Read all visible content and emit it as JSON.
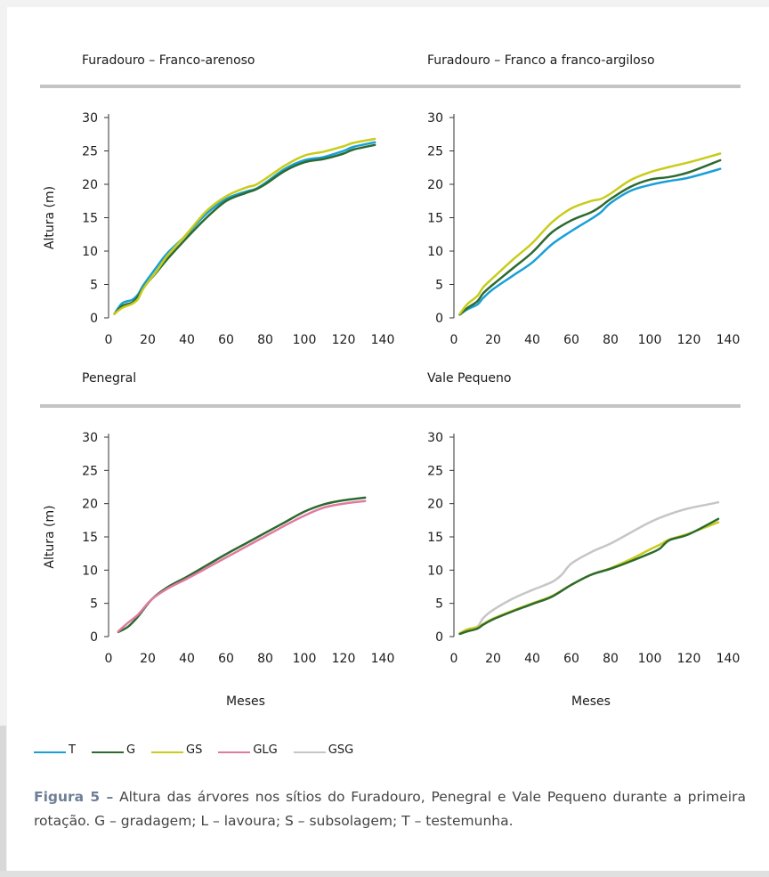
{
  "caption": {
    "label": "Figura 5 –",
    "text": "Altura das árvores nos sítios do Furadouro, Penegral e Vale Pequeno durante a primeira rotação. G – gradagem; L – lavoura; S – subsolagem; T – testemunha."
  },
  "legend": [
    {
      "name": "T",
      "color": "#1a9fd6"
    },
    {
      "name": "G",
      "color": "#2d6a2f"
    },
    {
      "name": "GS",
      "color": "#c8cc1a"
    },
    {
      "name": "GLG",
      "color": "#e07aa0"
    },
    {
      "name": "GSG",
      "color": "#c6c6c6"
    }
  ],
  "chart_data": [
    {
      "type": "line",
      "title": "Furadouro – Franco-arenoso",
      "xlabel": "",
      "ylabel": "Altura (m)",
      "xlim": [
        0,
        140
      ],
      "ylim": [
        0,
        30
      ],
      "xticks": [
        "0",
        "20",
        "40",
        "60",
        "80",
        "100",
        "120",
        "140"
      ],
      "yticks": [
        "0",
        "5",
        "10",
        "15",
        "20",
        "25",
        "30"
      ],
      "series": [
        {
          "name": "T",
          "color": "#1a9fd6",
          "points": [
            [
              3,
              0.6
            ],
            [
              7,
              2.2
            ],
            [
              12,
              2.7
            ],
            [
              15,
              3.5
            ],
            [
              18,
              5.0
            ],
            [
              25,
              7.8
            ],
            [
              30,
              9.7
            ],
            [
              40,
              12.5
            ],
            [
              50,
              15.6
            ],
            [
              60,
              17.8
            ],
            [
              70,
              18.9
            ],
            [
              75,
              19.3
            ],
            [
              80,
              20.2
            ],
            [
              90,
              22.3
            ],
            [
              100,
              23.6
            ],
            [
              110,
              24.1
            ],
            [
              120,
              25.0
            ],
            [
              125,
              25.6
            ],
            [
              136,
              26.3
            ]
          ]
        },
        {
          "name": "G",
          "color": "#2d6a2f",
          "points": [
            [
              3,
              0.6
            ],
            [
              7,
              1.8
            ],
            [
              12,
              2.3
            ],
            [
              15,
              3.2
            ],
            [
              18,
              4.6
            ],
            [
              25,
              7.0
            ],
            [
              30,
              8.8
            ],
            [
              40,
              12.0
            ],
            [
              50,
              15.0
            ],
            [
              60,
              17.5
            ],
            [
              70,
              18.7
            ],
            [
              75,
              19.2
            ],
            [
              80,
              20.0
            ],
            [
              90,
              22.0
            ],
            [
              100,
              23.3
            ],
            [
              110,
              23.8
            ],
            [
              120,
              24.6
            ],
            [
              125,
              25.2
            ],
            [
              136,
              25.9
            ]
          ]
        },
        {
          "name": "GS",
          "color": "#c8cc1a",
          "points": [
            [
              3,
              0.6
            ],
            [
              7,
              1.5
            ],
            [
              12,
              2.1
            ],
            [
              15,
              2.8
            ],
            [
              18,
              4.5
            ],
            [
              25,
              7.2
            ],
            [
              30,
              9.3
            ],
            [
              40,
              12.6
            ],
            [
              50,
              16.0
            ],
            [
              60,
              18.2
            ],
            [
              70,
              19.5
            ],
            [
              75,
              19.9
            ],
            [
              80,
              20.8
            ],
            [
              90,
              22.8
            ],
            [
              100,
              24.3
            ],
            [
              110,
              24.9
            ],
            [
              120,
              25.7
            ],
            [
              125,
              26.2
            ],
            [
              136,
              26.8
            ]
          ]
        }
      ]
    },
    {
      "type": "line",
      "title": "Furadouro – Franco a franco-argiloso",
      "xlabel": "",
      "ylabel": "",
      "xlim": [
        0,
        140
      ],
      "ylim": [
        0,
        30
      ],
      "xticks": [
        "0",
        "20",
        "40",
        "60",
        "80",
        "100",
        "120",
        "140"
      ],
      "yticks": [
        "0",
        "5",
        "10",
        "15",
        "20",
        "25",
        "30"
      ],
      "series": [
        {
          "name": "T",
          "color": "#1a9fd6",
          "points": [
            [
              3,
              0.5
            ],
            [
              7,
              1.3
            ],
            [
              12,
              2.0
            ],
            [
              15,
              3.0
            ],
            [
              20,
              4.3
            ],
            [
              30,
              6.3
            ],
            [
              40,
              8.3
            ],
            [
              50,
              11.0
            ],
            [
              60,
              13.0
            ],
            [
              70,
              14.8
            ],
            [
              75,
              15.8
            ],
            [
              80,
              17.2
            ],
            [
              90,
              19.0
            ],
            [
              100,
              19.9
            ],
            [
              110,
              20.5
            ],
            [
              120,
              21.0
            ],
            [
              136,
              22.3
            ]
          ]
        },
        {
          "name": "G",
          "color": "#2d6a2f",
          "points": [
            [
              3,
              0.5
            ],
            [
              7,
              1.5
            ],
            [
              12,
              2.5
            ],
            [
              15,
              3.7
            ],
            [
              20,
              5.0
            ],
            [
              30,
              7.4
            ],
            [
              40,
              9.8
            ],
            [
              50,
              12.8
            ],
            [
              60,
              14.6
            ],
            [
              70,
              15.8
            ],
            [
              75,
              16.7
            ],
            [
              80,
              17.8
            ],
            [
              90,
              19.6
            ],
            [
              100,
              20.7
            ],
            [
              110,
              21.1
            ],
            [
              120,
              21.8
            ],
            [
              136,
              23.6
            ]
          ]
        },
        {
          "name": "GS",
          "color": "#c8cc1a",
          "points": [
            [
              3,
              0.6
            ],
            [
              7,
              2.1
            ],
            [
              12,
              3.3
            ],
            [
              15,
              4.6
            ],
            [
              20,
              6.0
            ],
            [
              30,
              8.7
            ],
            [
              40,
              11.2
            ],
            [
              50,
              14.3
            ],
            [
              60,
              16.4
            ],
            [
              70,
              17.5
            ],
            [
              75,
              17.8
            ],
            [
              80,
              18.6
            ],
            [
              90,
              20.6
            ],
            [
              100,
              21.8
            ],
            [
              110,
              22.6
            ],
            [
              120,
              23.3
            ],
            [
              136,
              24.6
            ]
          ]
        }
      ]
    },
    {
      "type": "line",
      "title": "Penegral",
      "xlabel": "Meses",
      "ylabel": "Altura (m)",
      "xlim": [
        0,
        140
      ],
      "ylim": [
        0,
        30
      ],
      "xticks": [
        "0",
        "20",
        "40",
        "60",
        "80",
        "100",
        "120",
        "140"
      ],
      "yticks": [
        "0",
        "5",
        "10",
        "15",
        "20",
        "25",
        "30"
      ],
      "series": [
        {
          "name": "G",
          "color": "#2d6a2f",
          "points": [
            [
              5,
              0.7
            ],
            [
              10,
              1.5
            ],
            [
              15,
              3.0
            ],
            [
              22,
              5.6
            ],
            [
              30,
              7.4
            ],
            [
              40,
              9.0
            ],
            [
              50,
              10.7
            ],
            [
              60,
              12.4
            ],
            [
              70,
              14.0
            ],
            [
              80,
              15.6
            ],
            [
              90,
              17.2
            ],
            [
              100,
              18.8
            ],
            [
              110,
              19.9
            ],
            [
              120,
              20.5
            ],
            [
              131,
              20.9
            ]
          ]
        },
        {
          "name": "GLG",
          "color": "#e07aa0",
          "points": [
            [
              5,
              0.8
            ],
            [
              10,
              2.1
            ],
            [
              15,
              3.3
            ],
            [
              22,
              5.6
            ],
            [
              30,
              7.2
            ],
            [
              40,
              8.7
            ],
            [
              50,
              10.3
            ],
            [
              60,
              11.9
            ],
            [
              70,
              13.5
            ],
            [
              80,
              15.1
            ],
            [
              90,
              16.7
            ],
            [
              100,
              18.2
            ],
            [
              110,
              19.4
            ],
            [
              120,
              20.0
            ],
            [
              131,
              20.4
            ]
          ]
        }
      ]
    },
    {
      "type": "line",
      "title": "Vale Pequeno",
      "xlabel": "Meses",
      "ylabel": "",
      "xlim": [
        0,
        140
      ],
      "ylim": [
        0,
        30
      ],
      "xticks": [
        "0",
        "20",
        "40",
        "60",
        "80",
        "100",
        "120",
        "140"
      ],
      "yticks": [
        "0",
        "5",
        "10",
        "15",
        "20",
        "25",
        "30"
      ],
      "series": [
        {
          "name": "GSG",
          "color": "#c6c6c6",
          "points": [
            [
              3,
              0.5
            ],
            [
              7,
              1.1
            ],
            [
              12,
              1.5
            ],
            [
              15,
              2.8
            ],
            [
              20,
              4.0
            ],
            [
              30,
              5.7
            ],
            [
              40,
              7.0
            ],
            [
              50,
              8.2
            ],
            [
              55,
              9.3
            ],
            [
              60,
              11.0
            ],
            [
              70,
              12.7
            ],
            [
              80,
              14.0
            ],
            [
              90,
              15.6
            ],
            [
              100,
              17.2
            ],
            [
              110,
              18.4
            ],
            [
              120,
              19.3
            ],
            [
              135,
              20.2
            ]
          ]
        },
        {
          "name": "GS",
          "color": "#c8cc1a",
          "points": [
            [
              3,
              0.5
            ],
            [
              7,
              1.1
            ],
            [
              12,
              1.4
            ],
            [
              15,
              1.9
            ],
            [
              20,
              2.7
            ],
            [
              30,
              3.9
            ],
            [
              40,
              5.0
            ],
            [
              50,
              6.1
            ],
            [
              60,
              7.8
            ],
            [
              70,
              9.3
            ],
            [
              80,
              10.3
            ],
            [
              90,
              11.6
            ],
            [
              100,
              13.1
            ],
            [
              105,
              13.8
            ],
            [
              110,
              14.6
            ],
            [
              120,
              15.5
            ],
            [
              135,
              17.2
            ]
          ]
        },
        {
          "name": "G",
          "color": "#2d6a2f",
          "points": [
            [
              3,
              0.4
            ],
            [
              7,
              0.8
            ],
            [
              12,
              1.2
            ],
            [
              15,
              1.8
            ],
            [
              20,
              2.6
            ],
            [
              30,
              3.8
            ],
            [
              40,
              4.9
            ],
            [
              50,
              6.0
            ],
            [
              60,
              7.8
            ],
            [
              70,
              9.3
            ],
            [
              80,
              10.2
            ],
            [
              90,
              11.3
            ],
            [
              100,
              12.5
            ],
            [
              105,
              13.2
            ],
            [
              110,
              14.5
            ],
            [
              120,
              15.4
            ],
            [
              135,
              17.7
            ]
          ]
        }
      ]
    }
  ]
}
